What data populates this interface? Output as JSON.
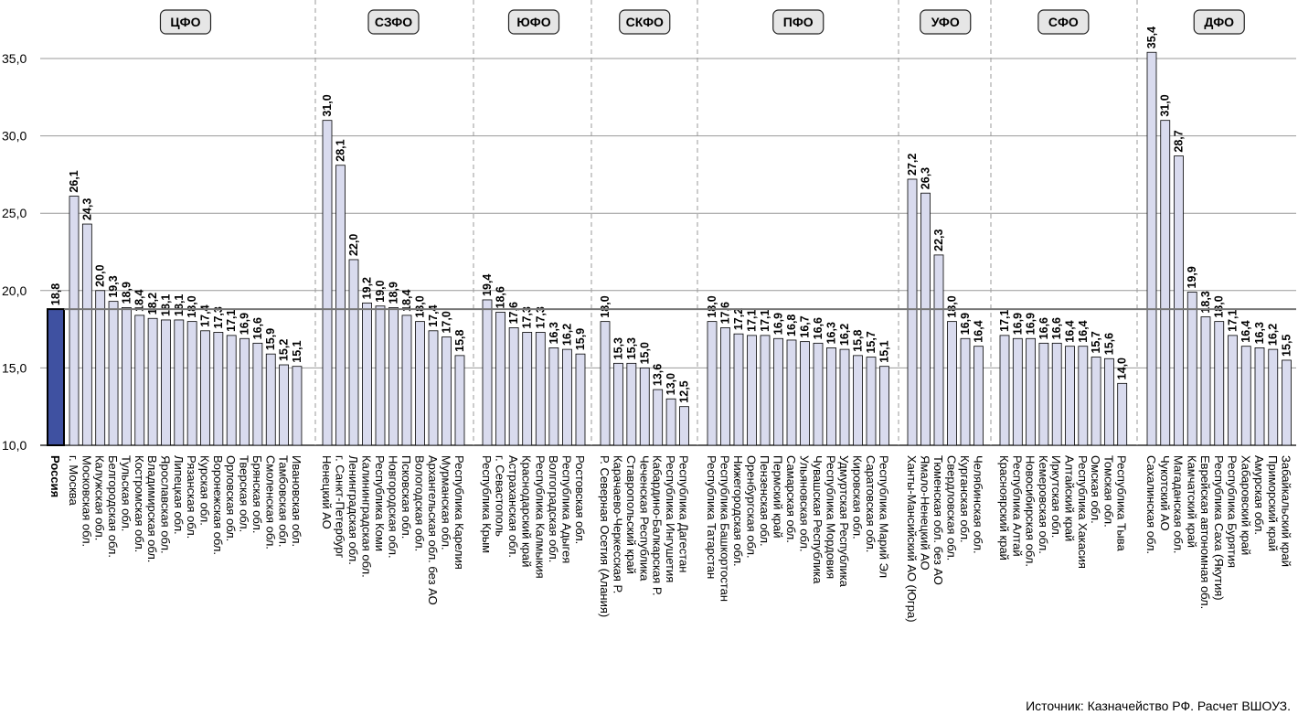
{
  "source": "Источник: Казначейство РФ. Расчет ВШОУЗ.",
  "chart_data": {
    "type": "bar",
    "ylim": [
      10,
      36.5
    ],
    "yticks": [
      "10,0",
      "15,0",
      "20,0",
      "25,0",
      "30,0",
      "35,0"
    ],
    "grid": true,
    "reference_value": 18.8,
    "colors": {
      "bar": "#d9dbee",
      "highlight": "#3f51a1",
      "grid": "#9a9a9a",
      "reference": "#777777",
      "group_line": "#999999"
    },
    "groups": [
      {
        "name": "Россия",
        "categories": [
          "Россия"
        ],
        "values": [
          18.8
        ],
        "labels": [
          "18,8"
        ]
      },
      {
        "name": "ЦФО",
        "categories": [
          "г. Москва",
          "Московская обл.",
          "Калужская обл.",
          "Белгородская обл.",
          "Тульская обл.",
          "Костромская обл.",
          "Владимирская обл.",
          "Ярославская обл.",
          "Липецкая обл.",
          "Рязанская обл.",
          "Курская обл.",
          "Воронежская обл.",
          "Орловская обл.",
          "Тверская обл.",
          "Брянская обл.",
          "Смоленская обл.",
          "Тамбовская обл.",
          "Ивановская обл."
        ],
        "values": [
          26.1,
          24.3,
          20.0,
          19.3,
          18.9,
          18.4,
          18.2,
          18.1,
          18.1,
          18.0,
          17.4,
          17.3,
          17.1,
          16.9,
          16.6,
          15.9,
          15.2,
          15.1
        ],
        "labels": [
          "26,1",
          "24,3",
          "20,0",
          "19,3",
          "18,9",
          "18,4",
          "18,2",
          "18,1",
          "18,1",
          "18,0",
          "17,4",
          "17,3",
          "17,1",
          "16,9",
          "16,6",
          "15,9",
          "15,2",
          "15,1"
        ]
      },
      {
        "name": "СЗФО",
        "categories": [
          "Ненецкий АО",
          "г. Санкт-Петербург",
          "Ленинградская обл.",
          "Калининградская обл.",
          "Республика Коми",
          "Новгородская обл.",
          "Псковская обл.",
          "Вологодская обл.",
          "Архангельская обл. без АО",
          "Мурманская обл.",
          "Республика Карелия"
        ],
        "values": [
          31.0,
          28.1,
          22.0,
          19.2,
          19.0,
          18.9,
          18.4,
          18.0,
          17.4,
          17.0,
          15.8
        ],
        "labels": [
          "31,0",
          "28,1",
          "22,0",
          "19,2",
          "19,0",
          "18,9",
          "18,4",
          "18,0",
          "17,4",
          "17,0",
          "15,8"
        ]
      },
      {
        "name": "ЮФО",
        "categories": [
          "Республика Крым",
          "г. Севастополь",
          "Астраханская обл.",
          "Краснодарский край",
          "Республика Калмыкия",
          "Волгоградская обл.",
          "Республика Адыгея",
          "Ростовская обл."
        ],
        "values": [
          19.4,
          18.6,
          17.6,
          17.3,
          17.3,
          16.3,
          16.2,
          15.9
        ],
        "labels": [
          "19,4",
          "18,6",
          "17,6",
          "17,3",
          "17,3",
          "16,3",
          "16,2",
          "15,9"
        ]
      },
      {
        "name": "СКФО",
        "categories": [
          "Р. Северная Осетия (Алания)",
          "Карачаево-Черкесская Р.",
          "Ставропольский край",
          "Чеченская Республика",
          "Кабардино-Балкарская Р.",
          "Республика Ингушетия",
          "Республика Дагестан"
        ],
        "values": [
          18.0,
          15.3,
          15.3,
          15.0,
          13.6,
          13.0,
          12.5
        ],
        "labels": [
          "18,0",
          "15,3",
          "15,3",
          "15,0",
          "13,6",
          "13,0",
          "12,5"
        ]
      },
      {
        "name": "ПФО",
        "categories": [
          "Республика Татарстан",
          "Республика Башкортостан",
          "Нижегородская обл.",
          "Оренбургская обл.",
          "Пензенская обл.",
          "Пермский край",
          "Самарская обл.",
          "Ульяновская обл.",
          "Чувашская Республика",
          "Республика Мордовия",
          "Удмуртская Республика",
          "Кировская обл.",
          "Саратовская обл.",
          "Республика Марий Эл"
        ],
        "values": [
          18.0,
          17.6,
          17.2,
          17.1,
          17.1,
          16.9,
          16.8,
          16.7,
          16.6,
          16.3,
          16.2,
          15.8,
          15.7,
          15.1
        ],
        "labels": [
          "18,0",
          "17,6",
          "17,2",
          "17,1",
          "17,1",
          "16,9",
          "16,8",
          "16,7",
          "16,6",
          "16,3",
          "16,2",
          "15,8",
          "15,7",
          "15,1"
        ]
      },
      {
        "name": "УФО",
        "categories": [
          "Ханты-Мансийский АО (Югра)",
          "Ямало-Ненецкий АО",
          "Тюменская обл. без АО",
          "Свердловская обл.",
          "Курганская обл.",
          "Челябинская обл."
        ],
        "values": [
          27.2,
          26.3,
          22.3,
          18.0,
          16.9,
          16.4
        ],
        "labels": [
          "27,2",
          "26,3",
          "22,3",
          "18,0",
          "16,9",
          "16,4"
        ]
      },
      {
        "name": "СФО",
        "categories": [
          "Красноярский край",
          "Республика Алтай",
          "Новосибирская обл.",
          "Кемеровская обл.",
          "Иркутская обл.",
          "Алтайский край",
          "Республика Хакасия",
          "Омская обл.",
          "Томская обл.",
          "Республика Тыва"
        ],
        "values": [
          17.1,
          16.9,
          16.9,
          16.6,
          16.6,
          16.4,
          16.4,
          15.7,
          15.6,
          14.0
        ],
        "labels": [
          "17,1",
          "16,9",
          "16,9",
          "16,6",
          "16,6",
          "16,4",
          "16,4",
          "15,7",
          "15,6",
          "14,0"
        ]
      },
      {
        "name": "ДФО",
        "categories": [
          "Сахалинская обл.",
          "Чукотский АО",
          "Магаданская обл.",
          "Камчатский край",
          "Еврейская автономная обл.",
          "Республика Саха (Якутия)",
          "Республика Бурятия",
          "Хабаровский край",
          "Амурская обл.",
          "Приморский край",
          "Забайкальский край"
        ],
        "values": [
          35.4,
          31.0,
          28.7,
          19.9,
          18.3,
          18.0,
          17.1,
          16.4,
          16.3,
          16.2,
          15.5
        ],
        "labels": [
          "35,4",
          "31,0",
          "28,7",
          "19,9",
          "18,3",
          "18,0",
          "17,1",
          "16,4",
          "16,3",
          "16,2",
          "15,5"
        ]
      }
    ]
  }
}
